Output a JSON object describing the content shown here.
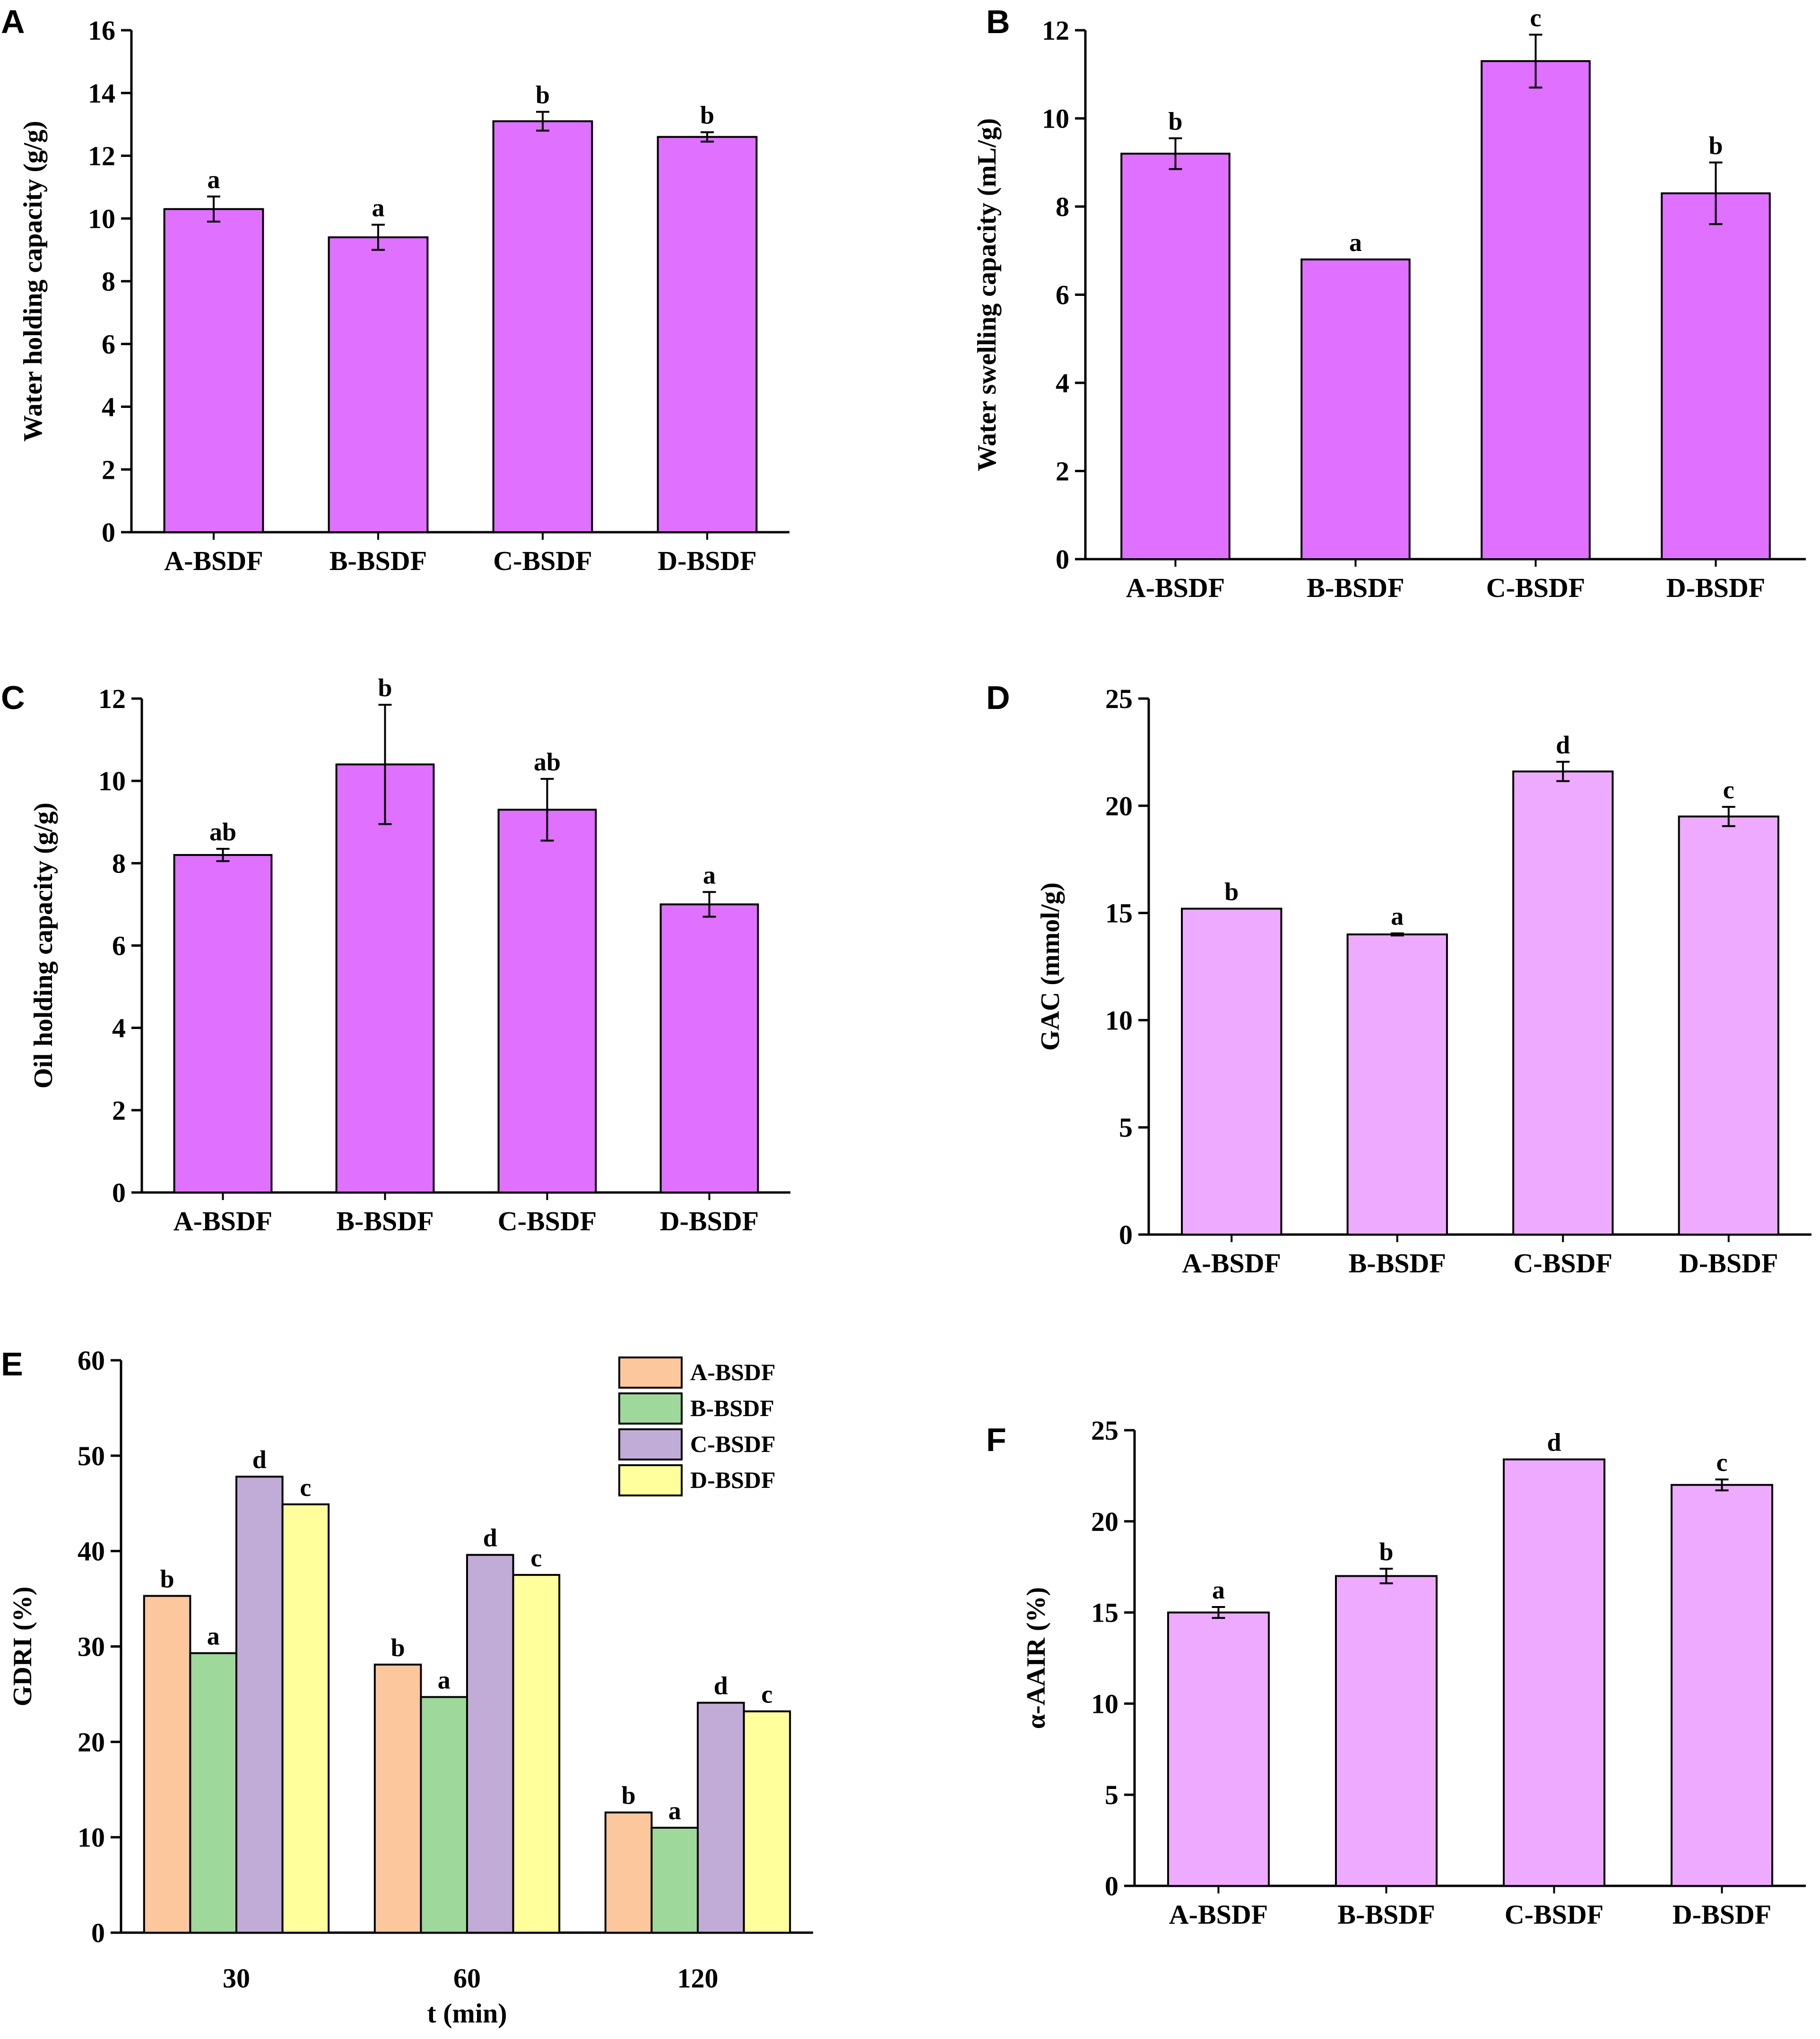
{
  "chart_data": [
    {
      "panel": "A",
      "type": "bar",
      "categories": [
        "A-BSDF",
        "B-BSDF",
        "C-BSDF",
        "D-BSDF"
      ],
      "values": [
        10.3,
        9.4,
        13.1,
        12.6
      ],
      "errors": [
        0.4,
        0.4,
        0.3,
        0.15
      ],
      "significance": [
        "a",
        "a",
        "b",
        "b"
      ],
      "ylabel": "Water holding capacity (g/g)",
      "xlabel": "",
      "ylim": [
        0,
        16
      ],
      "yticks": [
        0,
        2,
        4,
        6,
        8,
        10,
        12,
        14,
        16
      ],
      "color": "#e070ff"
    },
    {
      "panel": "B",
      "type": "bar",
      "categories": [
        "A-BSDF",
        "B-BSDF",
        "C-BSDF",
        "D-BSDF"
      ],
      "values": [
        9.2,
        6.8,
        11.3,
        8.3
      ],
      "errors": [
        0.35,
        0.0,
        0.6,
        0.7
      ],
      "significance": [
        "b",
        "a",
        "c",
        "b"
      ],
      "ylabel": "Water swelling capacity (mL/g)",
      "xlabel": "",
      "ylim": [
        0,
        12
      ],
      "yticks": [
        0,
        2,
        4,
        6,
        8,
        10,
        12
      ],
      "color": "#e070ff"
    },
    {
      "panel": "C",
      "type": "bar",
      "categories": [
        "A-BSDF",
        "B-BSDF",
        "C-BSDF",
        "D-BSDF"
      ],
      "values": [
        8.2,
        10.4,
        9.3,
        7.0
      ],
      "errors": [
        0.15,
        1.45,
        0.75,
        0.3
      ],
      "significance": [
        "ab",
        "b",
        "ab",
        "a"
      ],
      "ylabel": "Oil holding capacity (g/g)",
      "xlabel": "",
      "ylim": [
        0,
        12
      ],
      "yticks": [
        0,
        2,
        4,
        6,
        8,
        10,
        12
      ],
      "color": "#e070ff"
    },
    {
      "panel": "D",
      "type": "bar",
      "categories": [
        "A-BSDF",
        "B-BSDF",
        "C-BSDF",
        "D-BSDF"
      ],
      "values": [
        15.2,
        14.0,
        21.6,
        19.5
      ],
      "errors": [
        0.0,
        0.05,
        0.45,
        0.45
      ],
      "significance": [
        "b",
        "a",
        "d",
        "c"
      ],
      "ylabel": "GAC (mmol/g)",
      "xlabel": "",
      "ylim": [
        0,
        25
      ],
      "yticks": [
        0,
        5,
        10,
        15,
        20,
        25
      ],
      "color": "#eeaaff"
    },
    {
      "panel": "E",
      "type": "bar",
      "categories": [
        "30",
        "60",
        "120"
      ],
      "series": [
        {
          "name": "A-BSDF",
          "values": [
            35.3,
            28.1,
            12.6
          ],
          "significance": [
            "b",
            "b",
            "b"
          ],
          "color": "#fcc79c"
        },
        {
          "name": "B-BSDF",
          "values": [
            29.3,
            24.7,
            11.0
          ],
          "significance": [
            "a",
            "a",
            "a"
          ],
          "color": "#9ed89a"
        },
        {
          "name": "C-BSDF",
          "values": [
            47.8,
            39.6,
            24.1
          ],
          "significance": [
            "d",
            "d",
            "d"
          ],
          "color": "#c1acd8"
        },
        {
          "name": "D-BSDF",
          "values": [
            44.9,
            37.5,
            23.2
          ],
          "significance": [
            "c",
            "c",
            "c"
          ],
          "color": "#ffff9b"
        }
      ],
      "ylabel": "GDRI (%)",
      "xlabel": "t (min)",
      "ylim": [
        0,
        60
      ],
      "yticks": [
        0,
        10,
        20,
        30,
        40,
        50,
        60
      ],
      "legend": "top-right"
    },
    {
      "panel": "F",
      "type": "bar",
      "categories": [
        "A-BSDF",
        "B-BSDF",
        "C-BSDF",
        "D-BSDF"
      ],
      "values": [
        15.0,
        17.0,
        23.4,
        22.0
      ],
      "errors": [
        0.3,
        0.4,
        0.0,
        0.3
      ],
      "significance": [
        "a",
        "b",
        "d",
        "c"
      ],
      "ylabel": "α-AAIR (%)",
      "xlabel": "",
      "ylim": [
        0,
        25
      ],
      "yticks": [
        0,
        5,
        10,
        15,
        20,
        25
      ],
      "color": "#eeaaff"
    }
  ]
}
